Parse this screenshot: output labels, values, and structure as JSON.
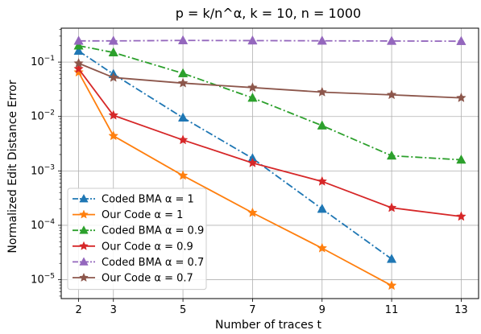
{
  "chart_data": {
    "type": "line",
    "title": "p = k/n^α, k = 10, n = 1000",
    "xlabel": "Number of traces t",
    "ylabel": "Normalized Edit Distance Error",
    "yscale": "log",
    "xlim": [
      1.5,
      13.5
    ],
    "ylim": [
      4.5e-06,
      0.42
    ],
    "grid": true,
    "legend_position": "lower-left",
    "xticks": [
      2,
      3,
      5,
      7,
      9,
      11,
      13
    ],
    "xtick_labels": [
      "2",
      "3",
      "5",
      "7",
      "9",
      "11",
      "13"
    ],
    "ytick_exponents": [
      -5,
      -4,
      -3,
      -2,
      -1
    ],
    "series": [
      {
        "name": "Coded BMA α = 1",
        "color": "#1f77b4",
        "linestyle": "dashdot",
        "marker": "triangle",
        "x": [
          2,
          3,
          5,
          7,
          9,
          11
        ],
        "y": [
          0.16,
          0.06,
          0.0095,
          0.0017,
          0.0002,
          2.4e-05
        ]
      },
      {
        "name": "Our Code α = 1",
        "color": "#ff7f0e",
        "linestyle": "solid",
        "marker": "star",
        "x": [
          2,
          3,
          5,
          7,
          9,
          11
        ],
        "y": [
          0.065,
          0.0044,
          0.00082,
          0.00017,
          3.8e-05,
          7.8e-06
        ]
      },
      {
        "name": "Coded BMA α = 0.9",
        "color": "#2ca02c",
        "linestyle": "dashdot",
        "marker": "triangle",
        "x": [
          2,
          3,
          5,
          7,
          9,
          11,
          13
        ],
        "y": [
          0.2,
          0.15,
          0.062,
          0.022,
          0.0068,
          0.0019,
          0.0016
        ]
      },
      {
        "name": "Our Code α = 0.9",
        "color": "#d62728",
        "linestyle": "solid",
        "marker": "star",
        "x": [
          2,
          3,
          5,
          7,
          9,
          11,
          13
        ],
        "y": [
          0.075,
          0.0105,
          0.0037,
          0.0014,
          0.00064,
          0.00021,
          0.000145
        ]
      },
      {
        "name": "Coded BMA α = 0.7",
        "color": "#9467bd",
        "linestyle": "dashdot",
        "marker": "triangle",
        "x": [
          2,
          3,
          5,
          7,
          9,
          11,
          13
        ],
        "y": [
          0.245,
          0.245,
          0.25,
          0.248,
          0.246,
          0.244,
          0.242
        ]
      },
      {
        "name": "Our Code α = 0.7",
        "color": "#8c564b",
        "linestyle": "solid",
        "marker": "star",
        "x": [
          2,
          3,
          5,
          7,
          9,
          11,
          13
        ],
        "y": [
          0.095,
          0.052,
          0.041,
          0.034,
          0.028,
          0.025,
          0.022
        ]
      }
    ]
  }
}
